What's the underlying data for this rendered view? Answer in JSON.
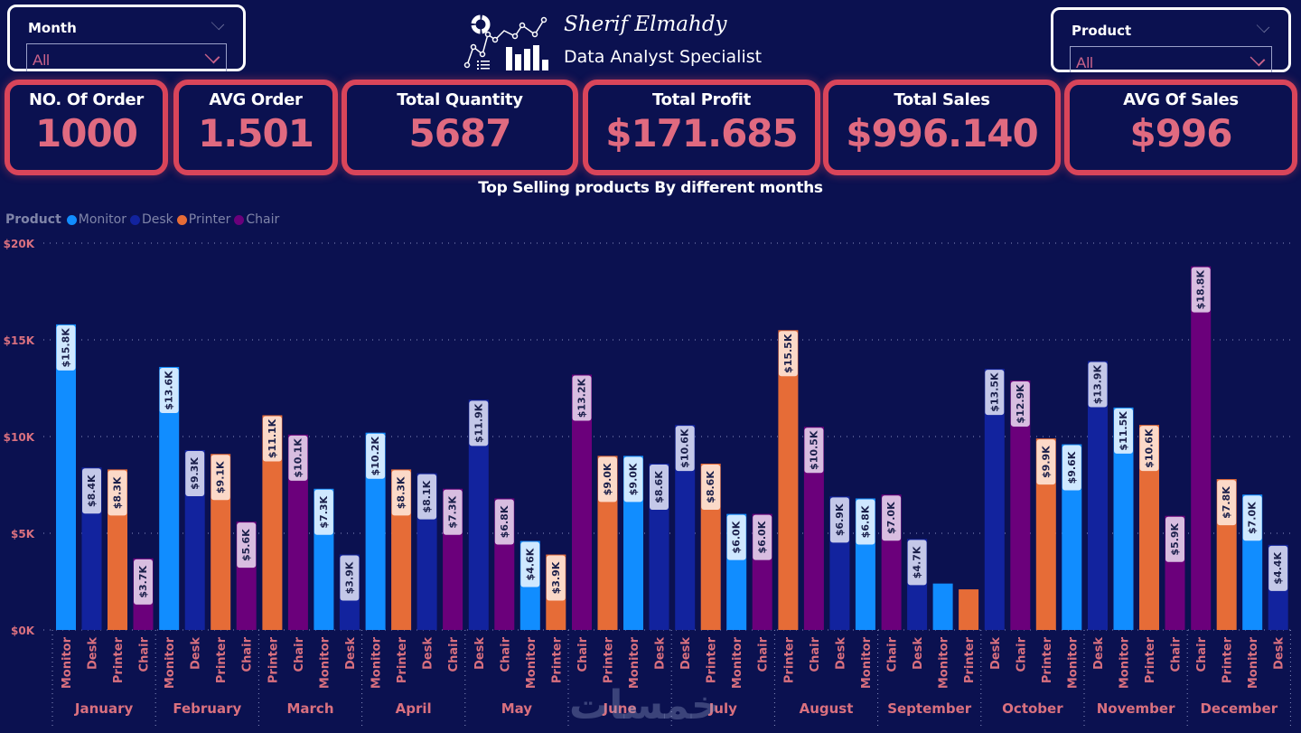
{
  "filters": {
    "month": {
      "label": "Month",
      "value": "All"
    },
    "product": {
      "label": "Product",
      "value": "All"
    }
  },
  "brand": {
    "name": "Sherif Elmahdy",
    "role": "Data Analyst Specialist",
    "logo_icon": "analytics-logo-icon"
  },
  "kpis": [
    {
      "title": "NO. Of Order",
      "value": "1000"
    },
    {
      "title": "AVG Order",
      "value": "1.501"
    },
    {
      "title": "Total Quantity",
      "value": "5687"
    },
    {
      "title": "Total Profit",
      "value": "$171.685"
    },
    {
      "title": "Total Sales",
      "value": "$996.140"
    },
    {
      "title": "AVG Of Sales",
      "value": "$996"
    }
  ],
  "colors": {
    "background": "#0b1150",
    "kpi_border": "#d9455a",
    "kpi_value": "#e06a80",
    "axis_text": "#d9707f",
    "Monitor": "#118dff",
    "Desk": "#12239e",
    "Printer": "#e66c37",
    "Chair": "#6b007b"
  },
  "watermark": "خمسات",
  "chart_data": {
    "type": "bar",
    "title": "Top Selling products By different months",
    "legend_title": "Product",
    "legend": [
      "Monitor",
      "Desk",
      "Printer",
      "Chair"
    ],
    "legend_position": "top-left",
    "xlabel": "",
    "ylabel": "",
    "ylim": [
      0,
      20000
    ],
    "yticks": [
      {
        "value": 0,
        "label": "$0K"
      },
      {
        "value": 5000,
        "label": "$5K"
      },
      {
        "value": 10000,
        "label": "$10K"
      },
      {
        "value": 15000,
        "label": "$15K"
      },
      {
        "value": 20000,
        "label": "$20K"
      }
    ],
    "grid": true,
    "groups": [
      {
        "month": "January",
        "bars": [
          {
            "product": "Monitor",
            "value": 15800,
            "label": "$15.8K"
          },
          {
            "product": "Desk",
            "value": 8400,
            "label": "$8.4K"
          },
          {
            "product": "Printer",
            "value": 8300,
            "label": "$8.3K"
          },
          {
            "product": "Chair",
            "value": 3700,
            "label": "$3.7K"
          }
        ]
      },
      {
        "month": "February",
        "bars": [
          {
            "product": "Monitor",
            "value": 13600,
            "label": "$13.6K"
          },
          {
            "product": "Desk",
            "value": 9300,
            "label": "$9.3K"
          },
          {
            "product": "Printer",
            "value": 9100,
            "label": "$9.1K"
          },
          {
            "product": "Chair",
            "value": 5600,
            "label": "$5.6K"
          }
        ]
      },
      {
        "month": "March",
        "bars": [
          {
            "product": "Printer",
            "value": 11100,
            "label": "$11.1K"
          },
          {
            "product": "Chair",
            "value": 10100,
            "label": "$10.1K"
          },
          {
            "product": "Monitor",
            "value": 7300,
            "label": "$7.3K"
          },
          {
            "product": "Desk",
            "value": 3900,
            "label": "$3.9K"
          }
        ]
      },
      {
        "month": "April",
        "bars": [
          {
            "product": "Monitor",
            "value": 10200,
            "label": "$10.2K"
          },
          {
            "product": "Printer",
            "value": 8300,
            "label": "$8.3K"
          },
          {
            "product": "Desk",
            "value": 8100,
            "label": "$8.1K"
          },
          {
            "product": "Chair",
            "value": 7300,
            "label": "$7.3K"
          }
        ]
      },
      {
        "month": "May",
        "bars": [
          {
            "product": "Desk",
            "value": 11900,
            "label": "$11.9K"
          },
          {
            "product": "Chair",
            "value": 6800,
            "label": "$6.8K"
          },
          {
            "product": "Monitor",
            "value": 4600,
            "label": "$4.6K"
          },
          {
            "product": "Printer",
            "value": 3900,
            "label": "$3.9K"
          }
        ]
      },
      {
        "month": "June",
        "bars": [
          {
            "product": "Chair",
            "value": 13200,
            "label": "$13.2K"
          },
          {
            "product": "Printer",
            "value": 9000,
            "label": "$9.0K"
          },
          {
            "product": "Monitor",
            "value": 9000,
            "label": "$9.0K"
          },
          {
            "product": "Desk",
            "value": 8600,
            "label": "$8.6K"
          }
        ]
      },
      {
        "month": "July",
        "bars": [
          {
            "product": "Desk",
            "value": 10600,
            "label": "$10.6K"
          },
          {
            "product": "Printer",
            "value": 8600,
            "label": "$8.6K"
          },
          {
            "product": "Monitor",
            "value": 6000,
            "label": "$6.0K"
          },
          {
            "product": "Chair",
            "value": 6000,
            "label": "$6.0K"
          }
        ]
      },
      {
        "month": "August",
        "bars": [
          {
            "product": "Printer",
            "value": 15500,
            "label": "$15.5K"
          },
          {
            "product": "Chair",
            "value": 10500,
            "label": "$10.5K"
          },
          {
            "product": "Desk",
            "value": 6900,
            "label": "$6.9K"
          },
          {
            "product": "Monitor",
            "value": 6800,
            "label": "$6.8K"
          }
        ]
      },
      {
        "month": "September",
        "bars": [
          {
            "product": "Chair",
            "value": 7000,
            "label": "$7.0K"
          },
          {
            "product": "Desk",
            "value": 4700,
            "label": "$4.7K"
          },
          {
            "product": "Monitor",
            "value": 2400,
            "label": ""
          },
          {
            "product": "Printer",
            "value": 2100,
            "label": ""
          }
        ]
      },
      {
        "month": "October",
        "bars": [
          {
            "product": "Desk",
            "value": 13500,
            "label": "$13.5K"
          },
          {
            "product": "Chair",
            "value": 12900,
            "label": "$12.9K"
          },
          {
            "product": "Printer",
            "value": 9900,
            "label": "$9.9K"
          },
          {
            "product": "Monitor",
            "value": 9600,
            "label": "$9.6K"
          }
        ]
      },
      {
        "month": "November",
        "bars": [
          {
            "product": "Desk",
            "value": 13900,
            "label": "$13.9K"
          },
          {
            "product": "Monitor",
            "value": 11500,
            "label": "$11.5K"
          },
          {
            "product": "Printer",
            "value": 10600,
            "label": "$10.6K"
          },
          {
            "product": "Chair",
            "value": 5900,
            "label": "$5.9K"
          }
        ]
      },
      {
        "month": "December",
        "bars": [
          {
            "product": "Chair",
            "value": 18800,
            "label": "$18.8K"
          },
          {
            "product": "Printer",
            "value": 7800,
            "label": "$7.8K"
          },
          {
            "product": "Monitor",
            "value": 7000,
            "label": "$7.0K"
          },
          {
            "product": "Desk",
            "value": 4400,
            "label": "$4.4K"
          }
        ]
      }
    ]
  }
}
